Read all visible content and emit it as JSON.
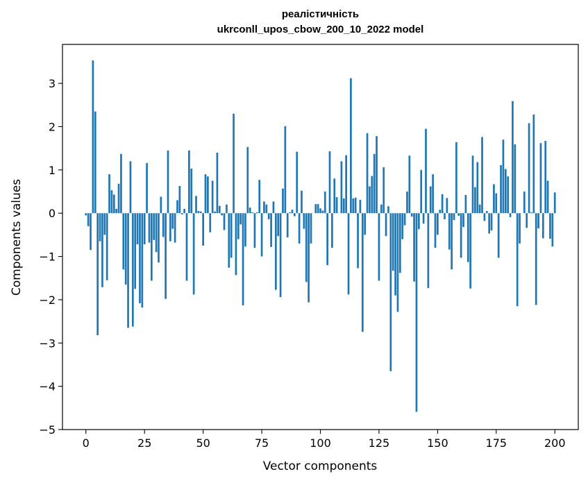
{
  "chart_data": {
    "type": "bar",
    "title_line1": "реалістичність",
    "title_line2": "ukrconll_upos_cbow_200_10_2022 model",
    "xlabel": "Vector components",
    "ylabel": "Components values",
    "xlim": [
      -10,
      210
    ],
    "ylim": [
      -5,
      3.9
    ],
    "xticks": [
      0,
      25,
      50,
      75,
      100,
      125,
      150,
      175,
      200
    ],
    "yticks": [
      -5,
      -4,
      -3,
      -2,
      -1,
      0,
      1,
      2,
      3
    ],
    "ytick_labels": [
      "−5",
      "−4",
      "−3",
      "−2",
      "−1",
      "0",
      "1",
      "2",
      "3"
    ],
    "bar_color": "#1f77b4",
    "grid": false,
    "values": [
      -0.05,
      -0.3,
      -0.85,
      3.53,
      2.35,
      -2.82,
      -0.65,
      -1.71,
      -0.5,
      -1.55,
      0.9,
      0.53,
      0.43,
      0.1,
      0.68,
      1.37,
      -1.3,
      -1.65,
      -2.65,
      1.2,
      -2.62,
      -1.75,
      -0.72,
      -2.08,
      -2.18,
      -0.72,
      1.16,
      -0.68,
      -1.56,
      -0.62,
      -0.9,
      -1.14,
      0.38,
      -0.55,
      -1.98,
      1.45,
      -0.65,
      -0.36,
      -0.68,
      0.3,
      0.63,
      -0.03,
      0.1,
      -1.56,
      1.45,
      1.03,
      -1.88,
      0.4,
      0.05,
      0.04,
      -0.75,
      0.9,
      0.85,
      -0.44,
      0.75,
      0.04,
      1.4,
      0.17,
      -0.05,
      -0.39,
      0.2,
      -1.26,
      -1.03,
      2.3,
      -1.43,
      -0.6,
      -0.26,
      -2.13,
      -0.77,
      1.53,
      0.13,
      0.02,
      -0.8,
      0.02,
      0.77,
      -1.0,
      0.27,
      0.2,
      -0.14,
      -0.78,
      0.27,
      -1.77,
      -0.53,
      -1.94,
      0.57,
      2.01,
      -0.56,
      0.02,
      0.08,
      -0.07,
      1.42,
      -0.7,
      0.52,
      -0.36,
      -1.59,
      -2.06,
      -0.7,
      0.0,
      0.21,
      0.21,
      0.11,
      0.06,
      0.5,
      -1.2,
      1.43,
      -0.8,
      0.8,
      0.37,
      0.0,
      1.2,
      0.34,
      1.34,
      -1.88,
      3.12,
      0.34,
      0.36,
      -1.27,
      0.31,
      -2.74,
      -0.5,
      1.85,
      0.62,
      0.86,
      1.37,
      1.78,
      -1.56,
      0.2,
      1.06,
      -0.53,
      0.16,
      -3.65,
      -1.33,
      -1.9,
      -2.28,
      -1.38,
      -0.6,
      -0.28,
      0.5,
      1.33,
      -0.08,
      -1.58,
      -4.59,
      -0.37,
      1.0,
      -0.24,
      1.95,
      -1.73,
      0.62,
      0.9,
      -0.8,
      -0.5,
      0.08,
      0.44,
      -0.14,
      0.35,
      -0.84,
      -1.3,
      -0.16,
      1.64,
      -0.06,
      -1.03,
      -0.32,
      0.42,
      -1.13,
      -1.74,
      1.33,
      0.6,
      1.18,
      0.2,
      1.76,
      -0.18,
      0.05,
      -0.47,
      -0.4,
      0.67,
      0.46,
      -1.03,
      1.11,
      1.7,
      1.02,
      0.85,
      -0.09,
      2.59,
      1.59,
      -2.15,
      -0.7,
      0.0,
      0.5,
      -0.34,
      2.08,
      0.02,
      2.28,
      -2.12,
      -0.35,
      1.62,
      -0.58,
      1.67,
      0.75,
      -0.59,
      -0.77,
      0.48
    ]
  }
}
